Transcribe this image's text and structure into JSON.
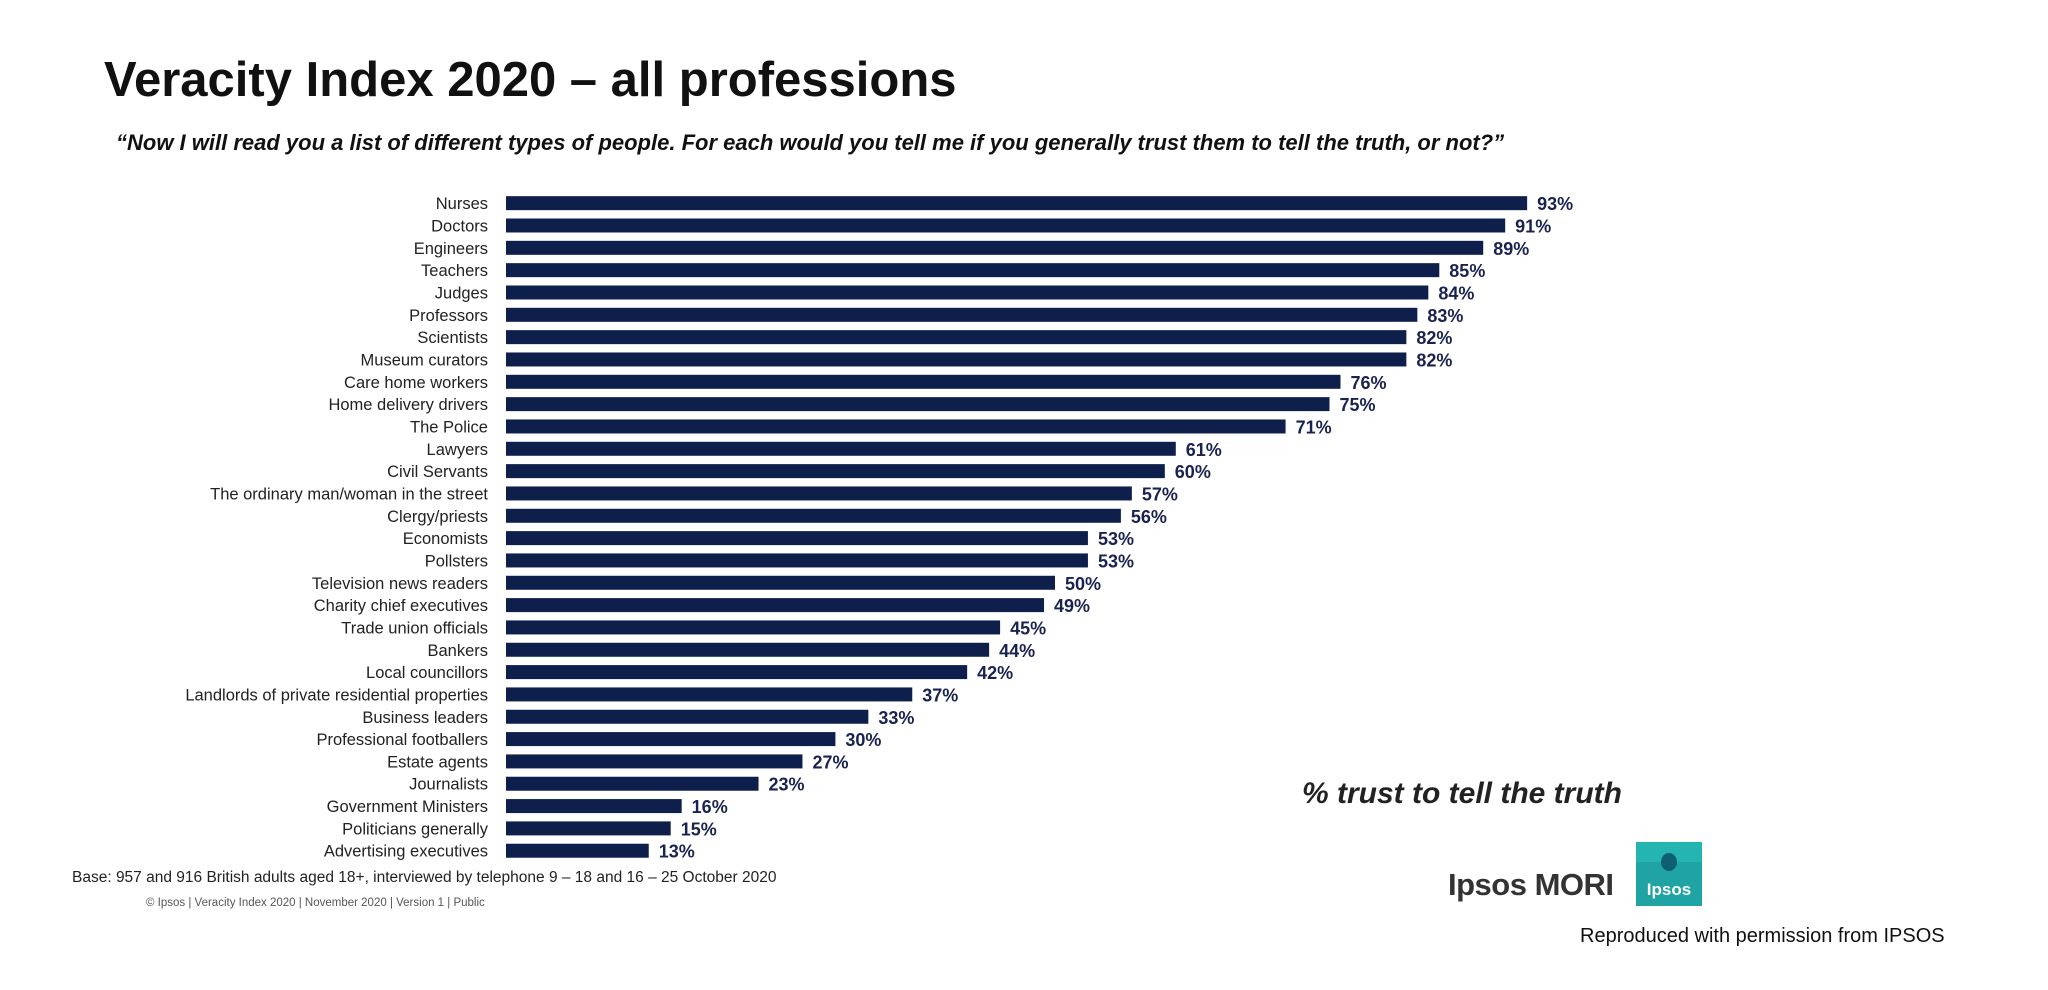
{
  "title": "Veracity Index 2020 – all professions",
  "subtitle": "“Now I will read you a list of different types of people. For each would you tell me if you generally trust them to tell the truth, or not?”",
  "measure_label": "% trust to tell the truth",
  "base_note": "Base: 957 and 916 British adults aged 18+, interviewed by telephone 9 – 18 and 16 – 25 October 2020",
  "copyright": "© Ipsos | Veracity Index 2020 | November 2020 | Version 1 | Public",
  "brand": "Ipsos MORI",
  "logo_text": "Ipsos",
  "credit": "Reproduced with permission from IPSOS",
  "colors": {
    "bar": "#0f1f4b",
    "label": "#1a2350",
    "logo": "#1fa3a3"
  },
  "chart_data": {
    "type": "bar",
    "orientation": "horizontal",
    "categories": [
      "Nurses",
      "Doctors",
      "Engineers",
      "Teachers",
      "Judges",
      "Professors",
      "Scientists",
      "Museum curators",
      "Care home workers",
      "Home delivery drivers",
      "The Police",
      "Lawyers",
      "Civil Servants",
      "The ordinary man/woman in the street",
      "Clergy/priests",
      "Economists",
      "Pollsters",
      "Television news readers",
      "Charity chief executives",
      "Trade union officials",
      "Bankers",
      "Local councillors",
      "Landlords of private residential properties",
      "Business leaders",
      "Professional footballers",
      "Estate agents",
      "Journalists",
      "Government Ministers",
      "Politicians generally",
      "Advertising executives"
    ],
    "values": [
      93,
      91,
      89,
      85,
      84,
      83,
      82,
      82,
      76,
      75,
      71,
      61,
      60,
      57,
      56,
      53,
      53,
      50,
      49,
      45,
      44,
      42,
      37,
      33,
      30,
      27,
      23,
      16,
      15,
      13
    ],
    "value_labels": [
      "93%",
      "91%",
      "89%",
      "85%",
      "84%",
      "83%",
      "82%",
      "82%",
      "76%",
      "75%",
      "71%",
      "61%",
      "60%",
      "57%",
      "56%",
      "53%",
      "53%",
      "50%",
      "49%",
      "45%",
      "44%",
      "42%",
      "37%",
      "33%",
      "30%",
      "27%",
      "23%",
      "16%",
      "15%",
      "13%"
    ],
    "xlim": [
      0,
      100
    ],
    "grid": false
  }
}
